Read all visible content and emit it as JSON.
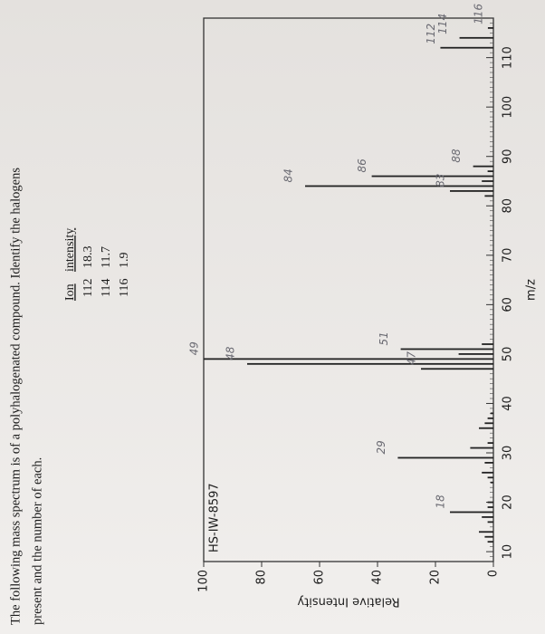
{
  "question": {
    "lines": [
      "The following mass spectrum is of a polyhalogenated compound. Identify the halogens",
      "present and the number of each."
    ]
  },
  "ion_table": {
    "headers": [
      "Ion",
      "intensity"
    ],
    "rows": [
      [
        "112",
        "18.3"
      ],
      [
        "114",
        "11.7"
      ],
      [
        "116",
        "1.9"
      ]
    ]
  },
  "chart_data": {
    "type": "bar",
    "ylabel": "Relative Intensity",
    "xlabel": "m/z",
    "plot_code": "HS-IW-8597",
    "x": [
      12,
      13,
      14,
      16,
      17,
      18,
      19,
      20,
      24,
      25,
      26,
      28,
      29,
      31,
      32,
      35,
      36,
      37,
      38,
      47,
      48,
      49,
      50,
      51,
      52,
      82,
      83,
      84,
      85,
      86,
      87,
      88,
      112,
      114,
      116
    ],
    "values": [
      2,
      3,
      5,
      2,
      4,
      15,
      2,
      2,
      1,
      2,
      4,
      3,
      33,
      8,
      2,
      5,
      3,
      2,
      1,
      25,
      85,
      100,
      12,
      32,
      4,
      3,
      15,
      65,
      4,
      42,
      2,
      7,
      18.3,
      11.7,
      1.9
    ],
    "color": "#222222",
    "xlim": [
      8,
      118
    ],
    "xticks": [
      10,
      20,
      30,
      40,
      50,
      60,
      70,
      80,
      90,
      100,
      110
    ],
    "ylim": [
      0,
      100
    ],
    "yticks": [
      0,
      20,
      40,
      60,
      80,
      100
    ],
    "annotations": [
      "18",
      "29",
      "47",
      "48",
      "49",
      "51",
      "83",
      "84",
      "86",
      "88",
      "112",
      "114",
      "116"
    ]
  }
}
